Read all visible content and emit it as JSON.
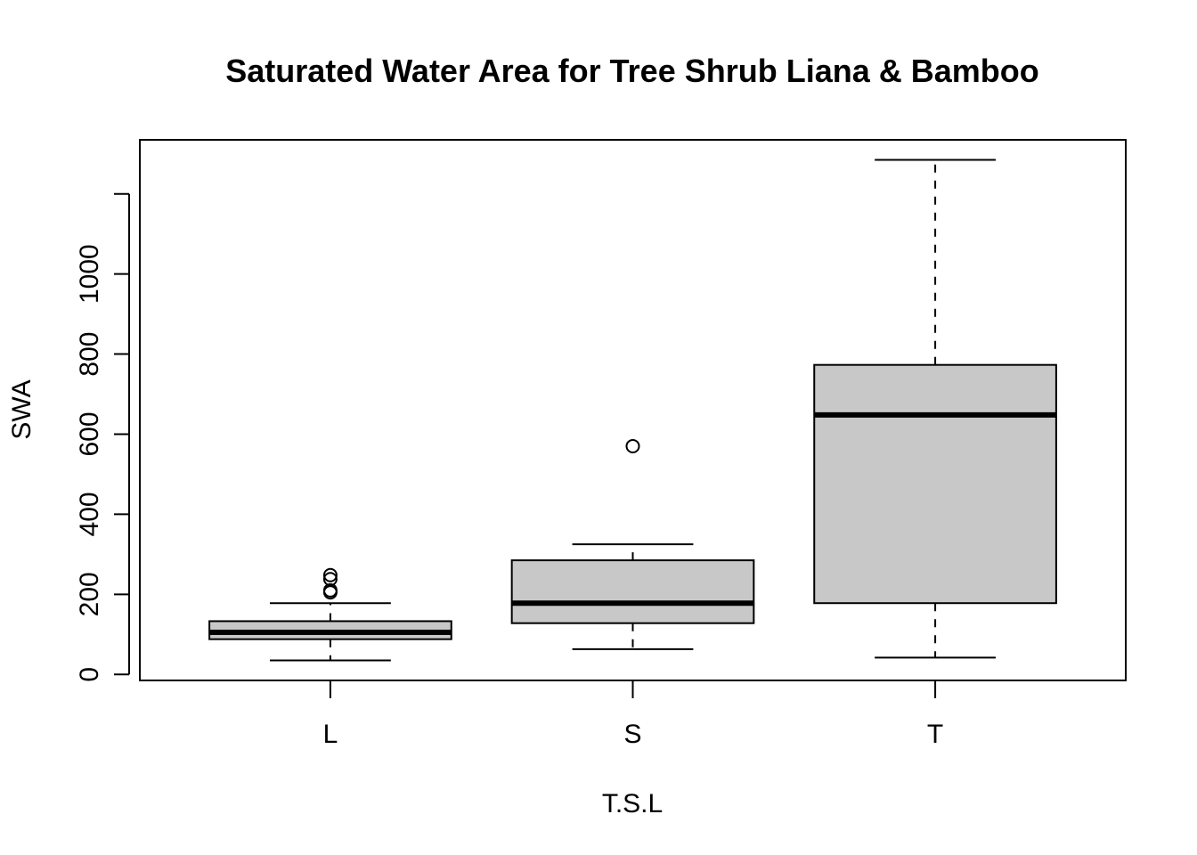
{
  "chart_data": {
    "type": "boxplot",
    "title": "Saturated Water Area for Tree Shrub Liana & Bamboo",
    "xlabel": "T.S.L",
    "ylabel": "SWA",
    "categories": [
      "L",
      "S",
      "T"
    ],
    "ylim": [
      -15,
      1335
    ],
    "yticks": [
      0,
      200,
      400,
      600,
      800,
      1000
    ],
    "grid": false,
    "legend": "none",
    "box_fill": "#c8c8c8",
    "boxes": [
      {
        "category": "L",
        "whisker_low": 35,
        "q1": 88,
        "median": 105,
        "q3": 133,
        "whisker_high": 178,
        "outliers": [
          205,
          210,
          238,
          248
        ]
      },
      {
        "category": "S",
        "whisker_low": 63,
        "q1": 128,
        "median": 178,
        "q3": 285,
        "whisker_high": 325,
        "outliers": [
          570
        ]
      },
      {
        "category": "T",
        "whisker_low": 42,
        "q1": 178,
        "median": 648,
        "q3": 773,
        "whisker_high": 1285,
        "outliers": []
      }
    ]
  }
}
